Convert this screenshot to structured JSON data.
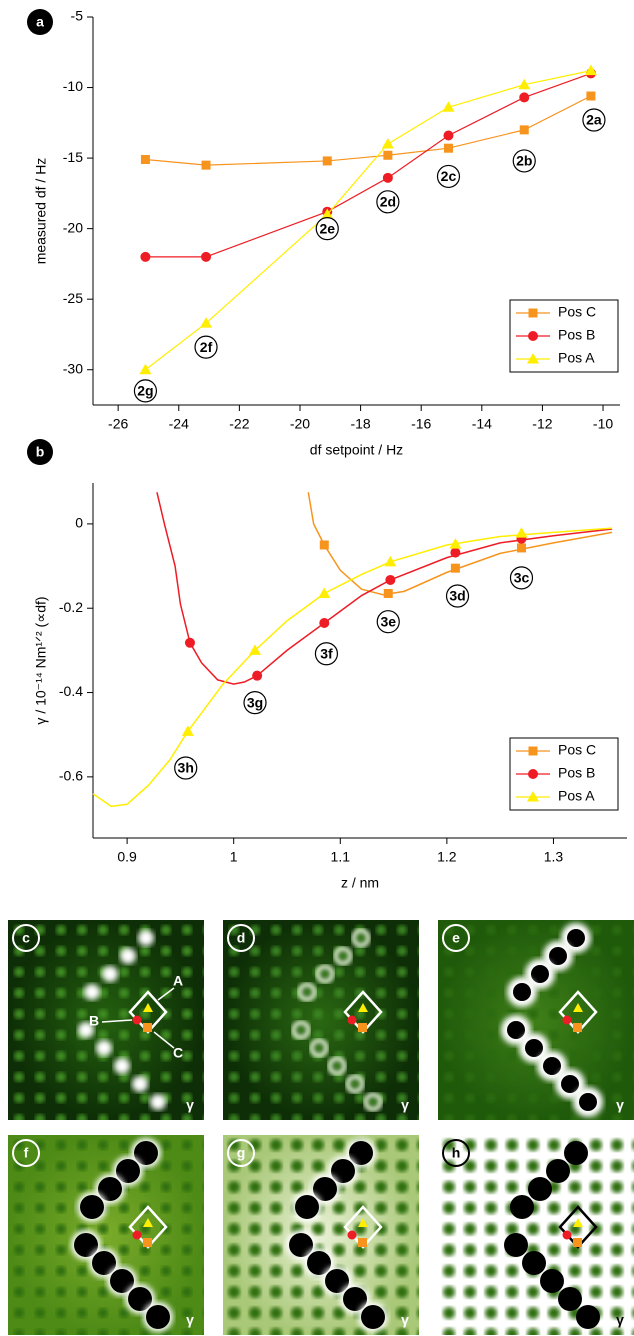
{
  "chart_data": [
    {
      "type": "line",
      "label": "a",
      "x_label": "df setpoint / Hz",
      "y_label": "measured df / Hz",
      "xlim": [
        -26.83,
        -9.44
      ],
      "xticks": [
        -26,
        -24,
        -22,
        -20,
        -18,
        -16,
        -14,
        -12,
        -10
      ],
      "ylim": [
        -32.5,
        -5
      ],
      "yticks": [
        -30,
        -25,
        -20,
        -15,
        -10,
        -5
      ],
      "x": [
        -25.1,
        -23.1,
        -19.1,
        -17.1,
        -15.1,
        -12.6,
        -10.4
      ],
      "series": [
        {
          "name": "Pos C",
          "color": "#f7941d",
          "marker": "square",
          "values": [
            -15.1,
            -15.5,
            -15.2,
            -14.8,
            -14.3,
            -13.0,
            -10.6
          ]
        },
        {
          "name": "Pos B",
          "color": "#ee1c24",
          "marker": "circle",
          "values": [
            -22,
            -22,
            -18.8,
            -16.4,
            -13.4,
            -10.7,
            -9.0
          ]
        },
        {
          "name": "Pos A",
          "color": "#ffee00",
          "marker": "triangle",
          "values": [
            -30,
            -26.7,
            -19.0,
            -14.0,
            -11.4,
            -9.8,
            -8.8
          ]
        }
      ],
      "annotations": [
        "2a",
        "2b",
        "2c",
        "2d",
        "2e",
        "2f",
        "2g"
      ],
      "legend": "lower-right"
    },
    {
      "type": "line",
      "label": "b",
      "x_label": "z / nm",
      "y_label": "γ / 10⁻¹⁴ Nm¹ᐟ² (∝df)",
      "xlim": [
        0.868,
        1.369
      ],
      "xticks": [
        0.9,
        1.0,
        1.1,
        1.2,
        1.3
      ],
      "ylim": [
        -0.745,
        0.097
      ],
      "yticks": [
        0,
        -0.2,
        -0.4,
        -0.6
      ],
      "series": [
        {
          "name": "Pos C",
          "color": "#f7941d",
          "marker": "square",
          "x": [
            1.085,
            1.145,
            1.208,
            1.27
          ],
          "values": [
            -0.05,
            -0.165,
            -0.105,
            -0.057
          ],
          "fit": {
            "x": [
              1.07,
              1.075,
              1.085,
              1.1,
              1.12,
              1.14,
              1.16,
              1.2,
              1.25,
              1.3,
              1.355
            ],
            "values": [
              0.075,
              0.0,
              -0.05,
              -0.11,
              -0.155,
              -0.168,
              -0.16,
              -0.115,
              -0.07,
              -0.045,
              -0.02
            ]
          }
        },
        {
          "name": "Pos B",
          "color": "#ee1c24",
          "marker": "circle",
          "x": [
            0.959,
            1.022,
            1.085,
            1.147,
            1.208,
            1.27
          ],
          "values": [
            -0.282,
            -0.36,
            -0.235,
            -0.133,
            -0.068,
            -0.035
          ],
          "fit": {
            "x": [
              0.928,
              0.935,
              0.945,
              0.95,
              0.959,
              0.97,
              0.985,
              1.0,
              1.01,
              1.022,
              1.05,
              1.085,
              1.12,
              1.147,
              1.2,
              1.25,
              1.3,
              1.355
            ],
            "values": [
              0.075,
              0.0,
              -0.1,
              -0.19,
              -0.282,
              -0.33,
              -0.37,
              -0.38,
              -0.375,
              -0.36,
              -0.3,
              -0.235,
              -0.17,
              -0.133,
              -0.08,
              -0.045,
              -0.028,
              -0.012
            ]
          }
        },
        {
          "name": "Pos A",
          "color": "#ffee00",
          "marker": "triangle",
          "x": [
            0.957,
            1.02,
            1.085,
            1.147,
            1.208,
            1.27
          ],
          "values": [
            -0.492,
            -0.3,
            -0.165,
            -0.09,
            -0.048,
            -0.022
          ],
          "fit": {
            "x": [
              0.868,
              0.885,
              0.9,
              0.92,
              0.94,
              0.957,
              0.99,
              1.02,
              1.05,
              1.085,
              1.12,
              1.147,
              1.2,
              1.25,
              1.3,
              1.355
            ],
            "values": [
              -0.64,
              -0.67,
              -0.665,
              -0.62,
              -0.56,
              -0.492,
              -0.38,
              -0.3,
              -0.23,
              -0.165,
              -0.12,
              -0.09,
              -0.05,
              -0.03,
              -0.02,
              -0.01
            ]
          }
        }
      ],
      "annotations": [
        "3c",
        "3d",
        "3e",
        "3f",
        "3g",
        "3h"
      ],
      "legend": "lower-right"
    }
  ],
  "panels": [
    {
      "label": "c",
      "symbol": "γ",
      "markers": [
        "A",
        "B",
        "C"
      ]
    },
    {
      "label": "d",
      "symbol": "γ"
    },
    {
      "label": "e",
      "symbol": "γ"
    },
    {
      "label": "f",
      "symbol": "γ"
    },
    {
      "label": "g",
      "symbol": "γ"
    },
    {
      "label": "h",
      "symbol": "γ"
    }
  ]
}
